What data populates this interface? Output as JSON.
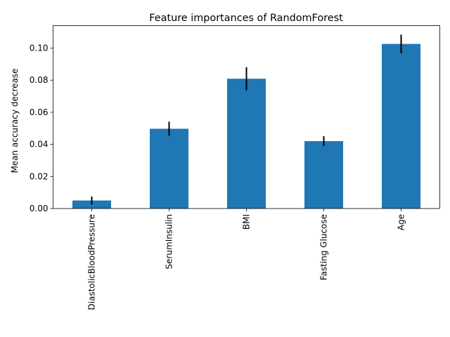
{
  "chart_data": {
    "type": "bar",
    "title": "Feature importances of RandomForest",
    "xlabel": "",
    "ylabel": "Mean accuracy decrease",
    "categories": [
      "DiastolicBloodPressure",
      "SerumInsulin",
      "BMI",
      "Fasting Glucose",
      "Age"
    ],
    "values": [
      0.005,
      0.0497,
      0.0809,
      0.042,
      0.1026
    ],
    "errors": [
      0.0025,
      0.0044,
      0.0072,
      0.0031,
      0.0058
    ],
    "ylim": [
      0,
      0.114
    ],
    "yticks": [
      "0.00",
      "0.02",
      "0.04",
      "0.06",
      "0.08",
      "0.10"
    ],
    "ytick_values": [
      0,
      0.02,
      0.04,
      0.06,
      0.08,
      0.1
    ],
    "grid": false,
    "legend": "none",
    "bar_color": "#1f77b4",
    "error_color": "#000000"
  }
}
